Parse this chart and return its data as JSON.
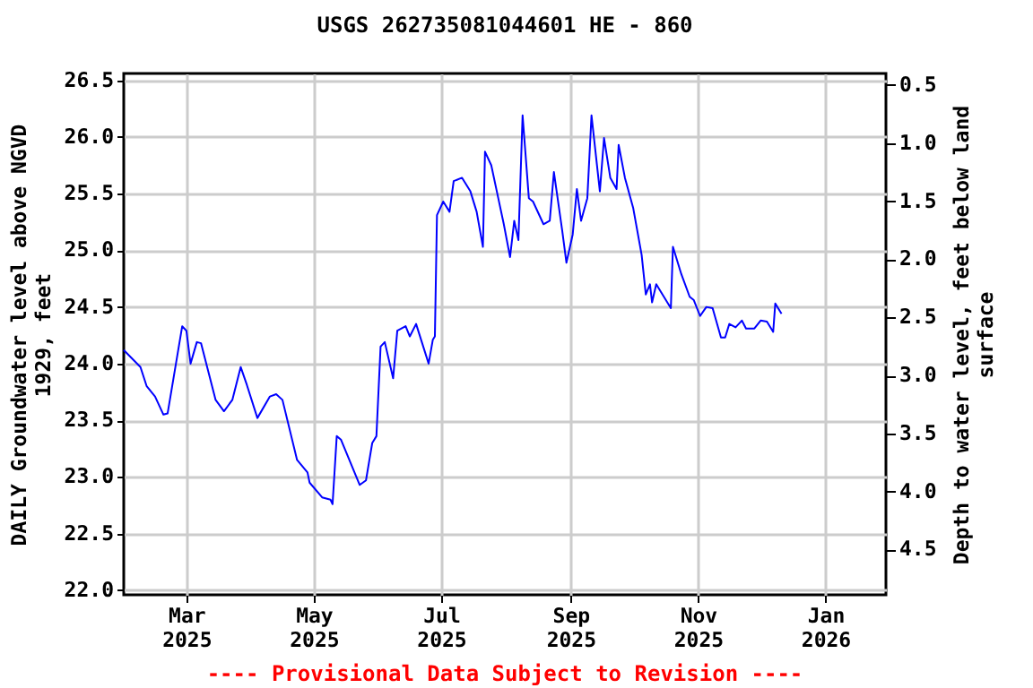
{
  "chart_data": {
    "type": "line",
    "title": "USGS 262735081044601 HE - 860",
    "ylabel": "DAILY Groundwater level above NGVD 1929, feet",
    "y2label": "Depth to water level, feet below land surface",
    "annotations": [
      "---- Provisional Data Subject to Revision ----"
    ],
    "xlim": [
      "2025-01-30",
      "2026-01-30"
    ],
    "xticks": [
      {
        "value": "2025-03-01",
        "label": "Mar 2025"
      },
      {
        "value": "2025-05-01",
        "label": "May 2025"
      },
      {
        "value": "2025-07-01",
        "label": "Jul 2025"
      },
      {
        "value": "2025-09-01",
        "label": "Sep 2025"
      },
      {
        "value": "2025-11-01",
        "label": "Nov 2025"
      },
      {
        "value": "2026-01-01",
        "label": "Jan 2026"
      }
    ],
    "ylim": [
      21.96,
      26.56
    ],
    "yticks": [
      {
        "value": 22,
        "label": "22.0"
      },
      22.5,
      {
        "value": 23,
        "label": "23.0"
      },
      23.5,
      {
        "value": 24,
        "label": "24.0"
      },
      24.5,
      {
        "value": 25,
        "label": "25.0"
      },
      25.5,
      {
        "value": 26,
        "label": "26.0"
      },
      26.5
    ],
    "y2lim": [
      4.89,
      0.4
    ],
    "y2ticks": [
      0.5,
      {
        "value": 1,
        "label": "1.0"
      },
      1.5,
      {
        "value": 2,
        "label": "2.0"
      },
      2.5,
      {
        "value": 3,
        "label": "3.0"
      },
      3.5,
      {
        "value": 4,
        "label": "4.0"
      },
      4.5
    ],
    "grid": true,
    "x": [
      "2025-01-30",
      "2025-02-07",
      "2025-02-10",
      "2025-02-14",
      "2025-02-18",
      "2025-02-20",
      "2025-02-27",
      "2025-03-01",
      "2025-03-03",
      "2025-03-06",
      "2025-03-08",
      "2025-03-15",
      "2025-03-19",
      "2025-03-23",
      "2025-03-27",
      "2025-03-30",
      "2025-04-04",
      "2025-04-10",
      "2025-04-13",
      "2025-04-16",
      "2025-04-23",
      "2025-04-28",
      "2025-04-29",
      "2025-05-05",
      "2025-05-09",
      "2025-05-10",
      "2025-05-12",
      "2025-05-14",
      "2025-05-23",
      "2025-05-26",
      "2025-05-29",
      "2025-05-31",
      "2025-06-02",
      "2025-06-04",
      "2025-06-08",
      "2025-06-10",
      "2025-06-14",
      "2025-06-16",
      "2025-06-19",
      "2025-06-25",
      "2025-06-27",
      "2025-06-28",
      "2025-06-29",
      "2025-07-02",
      "2025-07-05",
      "2025-07-07",
      "2025-07-11",
      "2025-07-15",
      "2025-07-18",
      "2025-07-21",
      "2025-07-22",
      "2025-07-25",
      "2025-07-28",
      "2025-07-31",
      "2025-08-03",
      "2025-08-05",
      "2025-08-07",
      "2025-08-09",
      "2025-08-12",
      "2025-08-14",
      "2025-08-19",
      "2025-08-22",
      "2025-08-24",
      "2025-08-28",
      "2025-08-30",
      "2025-09-02",
      "2025-09-04",
      "2025-09-06",
      "2025-09-09",
      "2025-09-11",
      "2025-09-15",
      "2025-09-17",
      "2025-09-20",
      "2025-09-23",
      "2025-09-24",
      "2025-09-27",
      "2025-10-01",
      "2025-10-05",
      "2025-10-07",
      "2025-10-09",
      "2025-10-10",
      "2025-10-12",
      "2025-10-15",
      "2025-10-19",
      "2025-10-20",
      "2025-10-24",
      "2025-10-28",
      "2025-10-30",
      "2025-11-02",
      "2025-11-05",
      "2025-11-08",
      "2025-11-12",
      "2025-11-14",
      "2025-11-16",
      "2025-11-19",
      "2025-11-22",
      "2025-11-24",
      "2025-11-28",
      "2025-12-01",
      "2025-12-04",
      "2025-12-07",
      "2025-12-08",
      "2025-12-11"
    ],
    "series": [
      {
        "color": "#0000ff",
        "values": [
          24.12,
          23.97,
          23.8,
          23.71,
          23.55,
          23.56,
          24.33,
          24.29,
          24.0,
          24.19,
          24.18,
          23.68,
          23.58,
          23.68,
          23.97,
          23.81,
          23.52,
          23.71,
          23.73,
          23.68,
          23.15,
          23.04,
          22.95,
          22.82,
          22.8,
          22.76,
          23.36,
          23.33,
          22.93,
          22.97,
          23.3,
          23.36,
          24.15,
          24.19,
          23.87,
          24.29,
          24.33,
          24.24,
          24.35,
          24.0,
          24.21,
          24.24,
          25.31,
          25.43,
          25.34,
          25.61,
          25.64,
          25.52,
          25.34,
          25.03,
          25.87,
          25.75,
          25.49,
          25.23,
          24.94,
          25.26,
          25.09,
          26.19,
          25.46,
          25.43,
          25.23,
          25.26,
          25.69,
          25.17,
          24.89,
          25.14,
          25.54,
          25.26,
          25.46,
          26.19,
          25.52,
          25.99,
          25.64,
          25.54,
          25.93,
          25.64,
          25.37,
          24.96,
          24.61,
          24.7,
          24.54,
          24.7,
          24.61,
          24.49,
          25.03,
          24.79,
          24.59,
          24.56,
          24.42,
          24.5,
          24.49,
          24.23,
          24.23,
          24.35,
          24.32,
          24.38,
          24.31,
          24.31,
          24.38,
          24.37,
          24.28,
          24.53,
          24.44
        ]
      }
    ]
  }
}
